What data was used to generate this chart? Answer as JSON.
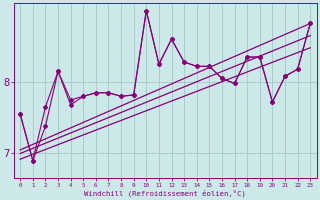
{
  "xlabel": "Windchill (Refroidissement éolien,°C)",
  "x_ticks": [
    0,
    1,
    2,
    3,
    4,
    5,
    6,
    7,
    8,
    9,
    10,
    11,
    12,
    13,
    14,
    15,
    16,
    17,
    18,
    19,
    20,
    21,
    22,
    23
  ],
  "y_ticks": [
    7,
    8
  ],
  "ylim": [
    6.65,
    9.1
  ],
  "xlim": [
    -0.5,
    23.5
  ],
  "bg_color": "#cce8e8",
  "line_color": "#880077",
  "grid_color": "#aacccc",
  "series1_x": [
    0,
    1,
    2,
    3,
    4,
    5,
    6,
    7,
    8,
    9,
    10,
    11,
    12,
    13,
    14,
    15,
    16,
    17,
    18,
    19,
    20,
    21,
    22,
    23
  ],
  "series1_y": [
    7.55,
    6.9,
    7.65,
    8.15,
    7.75,
    7.8,
    7.85,
    7.85,
    7.8,
    7.82,
    9.0,
    8.25,
    8.6,
    8.28,
    8.22,
    8.22,
    8.05,
    7.98,
    8.35,
    8.35,
    7.72,
    8.08,
    8.18,
    8.82
  ],
  "series2_x": [
    0,
    1,
    2,
    3,
    4,
    5,
    6,
    7,
    8,
    9,
    10,
    11,
    12,
    13,
    14,
    15,
    16,
    17,
    18,
    19,
    20,
    21,
    22,
    23
  ],
  "series2_y": [
    7.55,
    6.9,
    7.38,
    8.15,
    7.68,
    7.8,
    7.85,
    7.85,
    7.8,
    7.82,
    9.0,
    8.25,
    8.6,
    8.28,
    8.22,
    8.22,
    8.05,
    7.98,
    8.35,
    8.35,
    7.72,
    8.08,
    8.18,
    8.82
  ],
  "trend1_x": [
    0,
    23
  ],
  "trend1_y": [
    7.05,
    8.82
  ],
  "trend2_x": [
    0,
    23
  ],
  "trend2_y": [
    7.0,
    8.65
  ],
  "trend3_x": [
    0,
    23
  ],
  "trend3_y": [
    6.92,
    8.48
  ]
}
